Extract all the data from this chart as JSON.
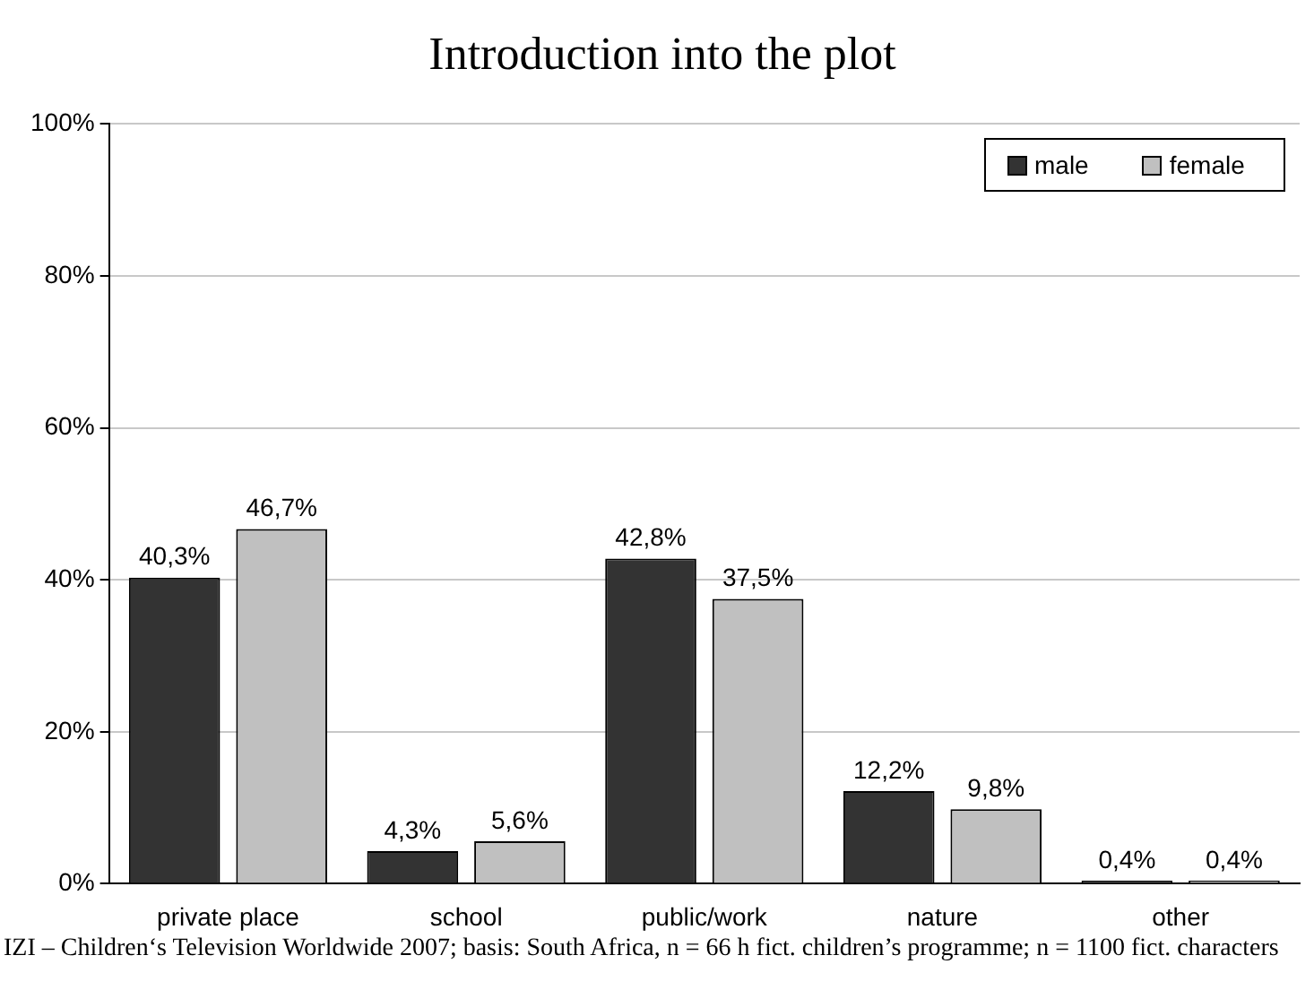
{
  "chart_data": {
    "type": "bar",
    "title": "Introduction into the plot",
    "categories": [
      "private place",
      "school",
      "public/work",
      "nature",
      "other"
    ],
    "series": [
      {
        "name": "male",
        "color": "#333333",
        "values": [
          40.3,
          4.3,
          42.8,
          12.2,
          0.4
        ],
        "value_labels": [
          "40,3%",
          "4,3%",
          "42,8%",
          "12,2%",
          "0,4%"
        ]
      },
      {
        "name": "female",
        "color": "#c0c0c0",
        "values": [
          46.7,
          5.6,
          37.5,
          9.8,
          0.4
        ],
        "value_labels": [
          "46,7%",
          "5,6%",
          "37,5%",
          "9,8%",
          "0,4%"
        ]
      }
    ],
    "ylim": [
      0,
      100
    ],
    "yticks": [
      {
        "value": 0,
        "label": "0%"
      },
      {
        "value": 20,
        "label": "20%"
      },
      {
        "value": 40,
        "label": "40%"
      },
      {
        "value": 60,
        "label": "60%"
      },
      {
        "value": 80,
        "label": "80%"
      },
      {
        "value": 100,
        "label": "100%"
      }
    ],
    "grid": "y",
    "legend": "top right",
    "annotations": [
      "IZI – Children‘s Television Worldwide 2007; basis: South Africa, n = 66 h fict. children’s programme; n = 1100 fict. characters"
    ]
  }
}
